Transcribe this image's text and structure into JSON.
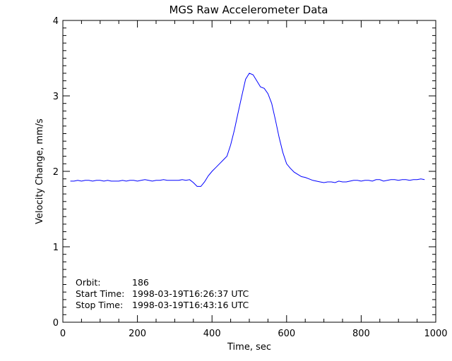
{
  "chart_data": {
    "type": "line",
    "title": "MGS Raw Accelerometer Data",
    "xlabel": "Time, sec",
    "ylabel": "Velocity Change, mm/s",
    "xlim": [
      0,
      1000
    ],
    "ylim": [
      0,
      4
    ],
    "xticks": [
      "0",
      "200",
      "400",
      "600",
      "800",
      "1000"
    ],
    "yticks": [
      "0",
      "1",
      "2",
      "3",
      "4"
    ],
    "grid": false,
    "line_color": "#0000ff",
    "annotations": {
      "orbit_label": "Orbit:",
      "orbit_value": "186",
      "start_label": "Start Time:",
      "start_value": "1998-03-19T16:26:37 UTC",
      "stop_label": "Stop Time:",
      "stop_value": "1998-03-19T16:43:16 UTC"
    },
    "x": [
      20,
      30,
      40,
      50,
      60,
      70,
      80,
      90,
      100,
      110,
      120,
      130,
      140,
      150,
      160,
      170,
      180,
      190,
      200,
      210,
      220,
      230,
      240,
      250,
      260,
      270,
      280,
      290,
      300,
      310,
      320,
      330,
      340,
      350,
      360,
      370,
      380,
      390,
      400,
      410,
      420,
      430,
      440,
      450,
      460,
      470,
      480,
      490,
      500,
      510,
      520,
      530,
      540,
      550,
      560,
      570,
      580,
      590,
      600,
      610,
      620,
      630,
      640,
      650,
      660,
      670,
      680,
      690,
      700,
      710,
      720,
      730,
      740,
      750,
      760,
      770,
      780,
      790,
      800,
      810,
      820,
      830,
      840,
      850,
      860,
      870,
      880,
      890,
      900,
      910,
      920,
      930,
      940,
      950,
      960,
      970
    ],
    "y": [
      1.87,
      1.87,
      1.88,
      1.87,
      1.88,
      1.88,
      1.87,
      1.88,
      1.88,
      1.87,
      1.88,
      1.87,
      1.87,
      1.87,
      1.88,
      1.87,
      1.88,
      1.88,
      1.87,
      1.88,
      1.89,
      1.88,
      1.87,
      1.88,
      1.88,
      1.89,
      1.88,
      1.88,
      1.88,
      1.88,
      1.89,
      1.88,
      1.89,
      1.85,
      1.8,
      1.8,
      1.86,
      1.94,
      2.0,
      2.05,
      2.1,
      2.15,
      2.2,
      2.35,
      2.55,
      2.78,
      3.0,
      3.22,
      3.3,
      3.28,
      3.2,
      3.12,
      3.1,
      3.03,
      2.9,
      2.68,
      2.45,
      2.25,
      2.1,
      2.04,
      1.99,
      1.96,
      1.93,
      1.92,
      1.9,
      1.88,
      1.87,
      1.86,
      1.85,
      1.86,
      1.86,
      1.85,
      1.87,
      1.86,
      1.86,
      1.87,
      1.88,
      1.88,
      1.87,
      1.88,
      1.88,
      1.87,
      1.89,
      1.89,
      1.87,
      1.88,
      1.89,
      1.89,
      1.88,
      1.89,
      1.89,
      1.88,
      1.89,
      1.89,
      1.9,
      1.89
    ]
  }
}
